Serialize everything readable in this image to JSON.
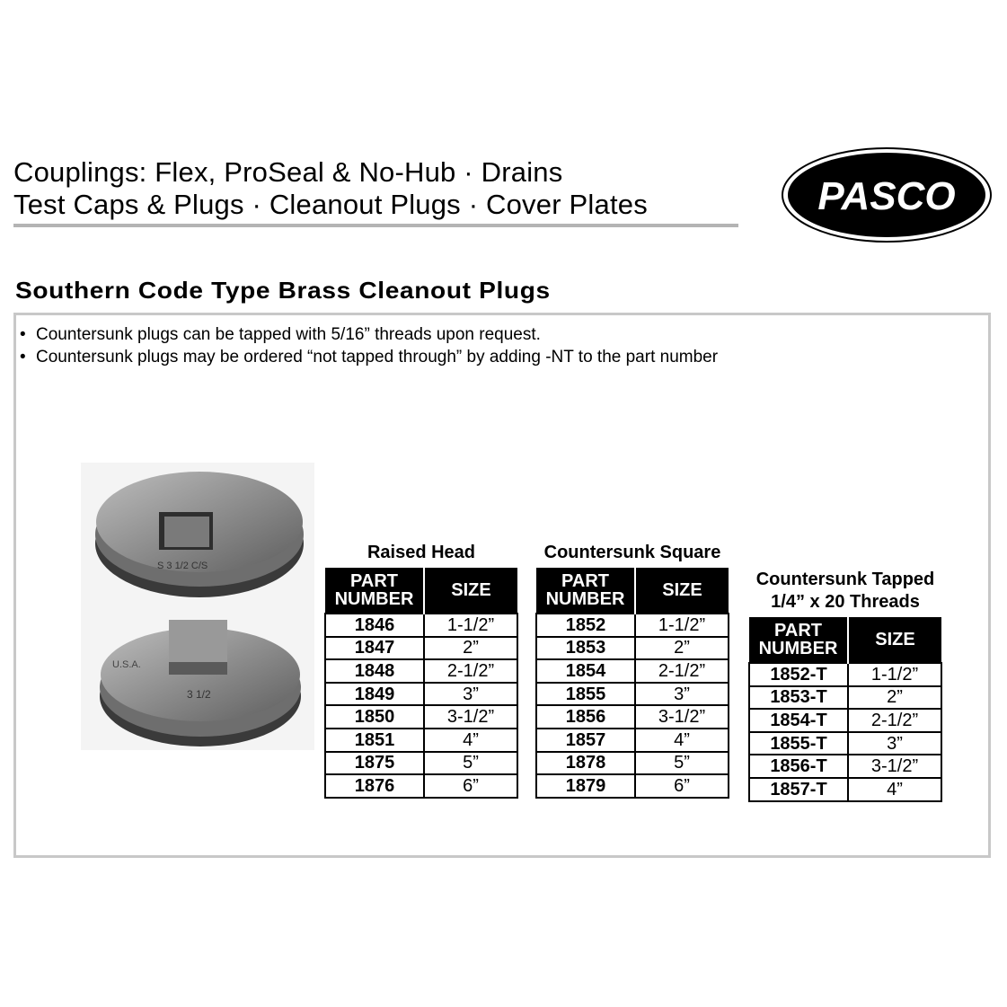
{
  "header": {
    "line1": "Couplings: Flex, ProSeal & No-Hub · Drains",
    "line2": "Test Caps & Plugs · Cleanout Plugs · Cover Plates",
    "logo_text": "PASCO"
  },
  "section_title": "Southern Code Type Brass Cleanout Plugs",
  "notes": [
    "Countersunk plugs can be tapped with 5/16” threads upon request.",
    "Countersunk plugs may be ordered “not tapped through” by adding -NT to the part number"
  ],
  "photo_lettering": {
    "top": "S 3 1/2 C/S",
    "bottom_left": "U.S.A.",
    "bottom_size": "3 1/2"
  },
  "columns": {
    "part": [
      "PART",
      "NUMBER"
    ],
    "size": "SIZE"
  },
  "tables": [
    {
      "title": "Raised Head",
      "subtitle": "",
      "rows": [
        [
          "1846",
          "1-1/2”"
        ],
        [
          "1847",
          "2”"
        ],
        [
          "1848",
          "2-1/2”"
        ],
        [
          "1849",
          "3”"
        ],
        [
          "1850",
          "3-1/2”"
        ],
        [
          "1851",
          "4”"
        ],
        [
          "1875",
          "5”"
        ],
        [
          "1876",
          "6”"
        ]
      ]
    },
    {
      "title": "Countersunk Square",
      "subtitle": "",
      "rows": [
        [
          "1852",
          "1-1/2”"
        ],
        [
          "1853",
          "2”"
        ],
        [
          "1854",
          "2-1/2”"
        ],
        [
          "1855",
          "3”"
        ],
        [
          "1856",
          "3-1/2”"
        ],
        [
          "1857",
          "4”"
        ],
        [
          "1878",
          "5”"
        ],
        [
          "1879",
          "6”"
        ]
      ]
    },
    {
      "title": "Countersunk Tapped",
      "subtitle": "1/4” x 20 Threads",
      "rows": [
        [
          "1852-T",
          "1-1/2”"
        ],
        [
          "1853-T",
          "2”"
        ],
        [
          "1854-T",
          "2-1/2”"
        ],
        [
          "1855-T",
          "3”"
        ],
        [
          "1856-T",
          "3-1/2”"
        ],
        [
          "1857-T",
          "4”"
        ]
      ]
    }
  ]
}
